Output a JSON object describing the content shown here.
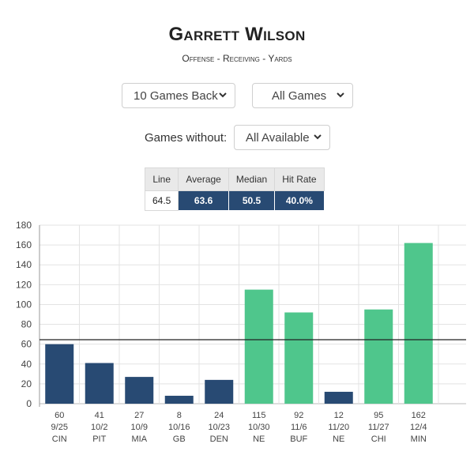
{
  "header": {
    "title": "Garrett Wilson",
    "subtitle": "Offense - Receiving - Yards"
  },
  "filters": {
    "range": "10 Games Back",
    "game_type": "All Games",
    "without_label": "Games without:",
    "without_value": "All Available"
  },
  "stats": {
    "headers": [
      "Line",
      "Average",
      "Median",
      "Hit Rate"
    ],
    "values": [
      "64.5",
      "63.6",
      "50.5",
      "40.0%"
    ]
  },
  "colors": {
    "under": "#284a73",
    "over": "#4fc68c",
    "line": "#222222"
  },
  "chart_data": {
    "type": "bar",
    "yticks": [
      "0",
      "20",
      "40",
      "60",
      "80",
      "100",
      "120",
      "140",
      "160",
      "180"
    ],
    "ylim": [
      0,
      180
    ],
    "line_value": 64.5,
    "categories": [
      {
        "value": 60,
        "date": "9/25",
        "opp": "CIN"
      },
      {
        "value": 41,
        "date": "10/2",
        "opp": "PIT"
      },
      {
        "value": 27,
        "date": "10/9",
        "opp": "MIA"
      },
      {
        "value": 8,
        "date": "10/16",
        "opp": "GB"
      },
      {
        "value": 24,
        "date": "10/23",
        "opp": "DEN"
      },
      {
        "value": 115,
        "date": "10/30",
        "opp": "NE"
      },
      {
        "value": 92,
        "date": "11/6",
        "opp": "BUF"
      },
      {
        "value": 12,
        "date": "11/20",
        "opp": "NE"
      },
      {
        "value": 95,
        "date": "11/27",
        "opp": "CHI"
      },
      {
        "value": 162,
        "date": "12/4",
        "opp": "MIN"
      }
    ]
  }
}
